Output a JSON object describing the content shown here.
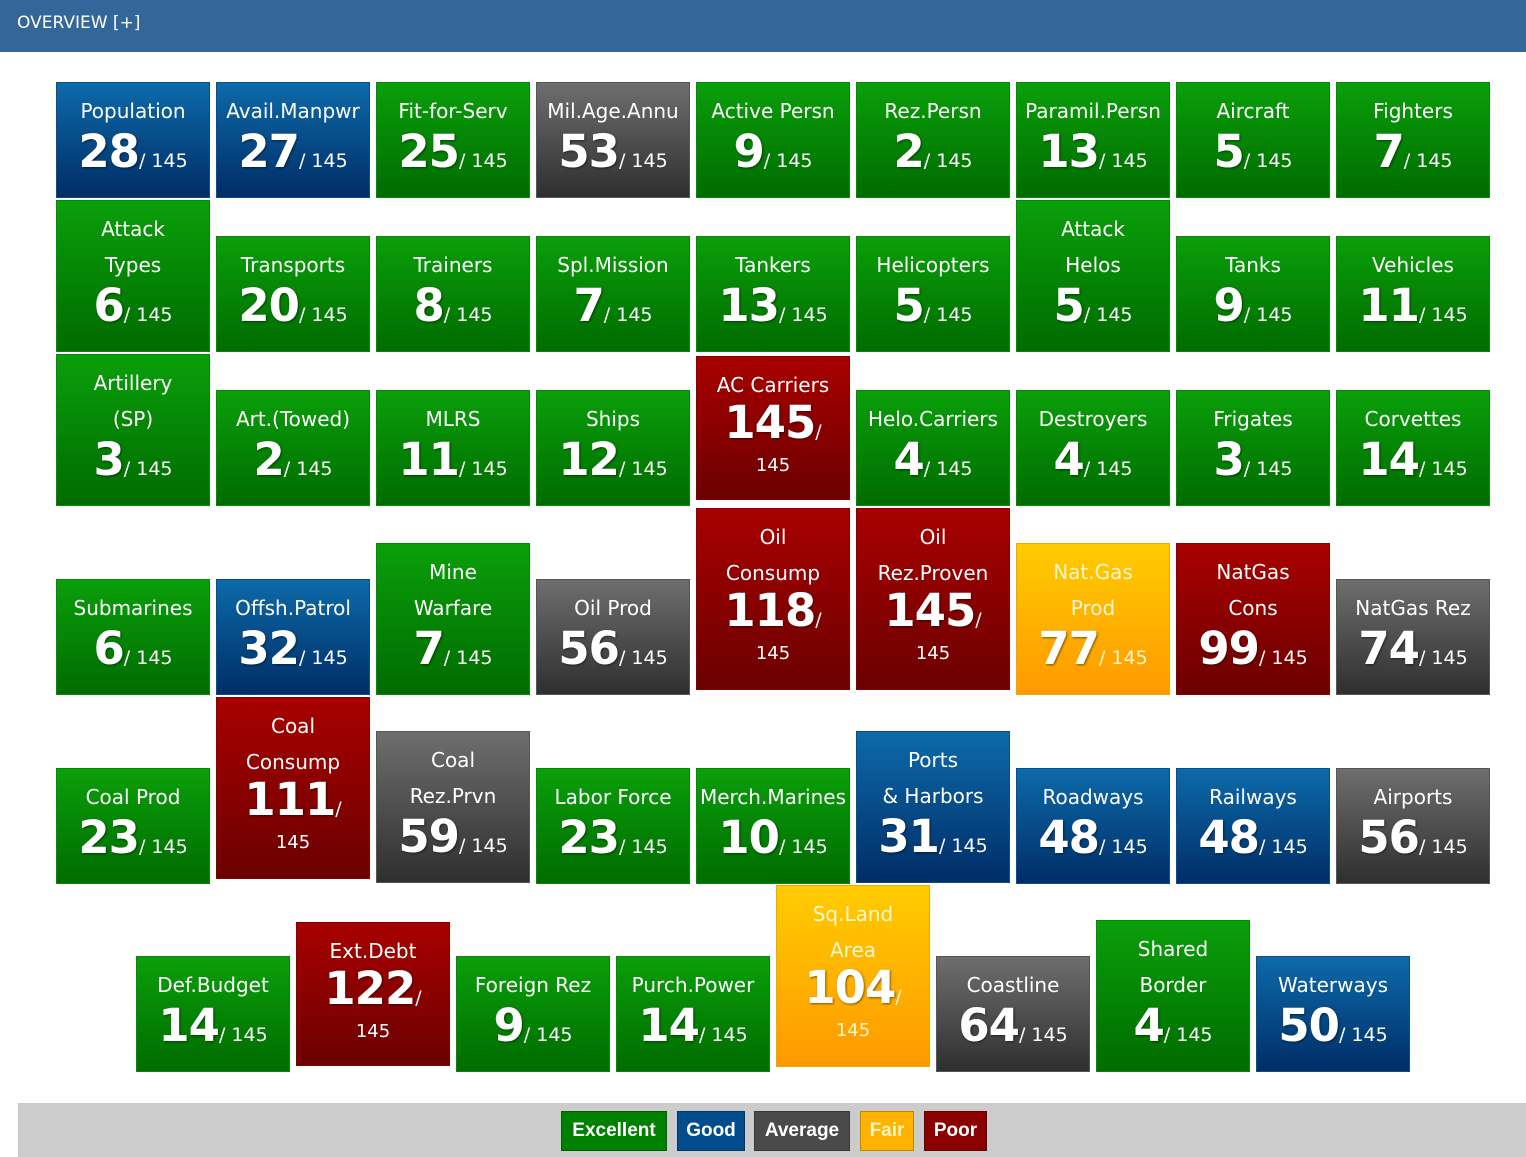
{
  "header": {
    "title": "OVERVIEW [+]"
  },
  "colors": {
    "excellent": "#008000",
    "good": "#004c8c",
    "average": "#4a4a4a",
    "fair": "#ffb300",
    "poor": "#8b0000"
  },
  "tiles": [
    {
      "label": "Population",
      "rank": "28",
      "total": "145",
      "rating": "good"
    },
    {
      "label": "Avail.Manpwr",
      "rank": "27",
      "total": "145",
      "rating": "good"
    },
    {
      "label": "Fit-for-Serv",
      "rank": "25",
      "total": "145",
      "rating": "excellent"
    },
    {
      "label": "Mil.Age.Annu",
      "rank": "53",
      "total": "145",
      "rating": "average"
    },
    {
      "label": "Active Persn",
      "rank": "9",
      "total": "145",
      "rating": "excellent"
    },
    {
      "label": "Rez.Persn",
      "rank": "2",
      "total": "145",
      "rating": "excellent"
    },
    {
      "label": "Paramil.Persn",
      "rank": "13",
      "total": "145",
      "rating": "excellent"
    },
    {
      "label": "Aircraft",
      "rank": "5",
      "total": "145",
      "rating": "excellent"
    },
    {
      "label": "Fighters",
      "rank": "7",
      "total": "145",
      "rating": "excellent"
    },
    {
      "label": "Attack Types",
      "rank": "6",
      "total": "145",
      "rating": "excellent"
    },
    {
      "label": "Transports",
      "rank": "20",
      "total": "145",
      "rating": "excellent"
    },
    {
      "label": "Trainers",
      "rank": "8",
      "total": "145",
      "rating": "excellent"
    },
    {
      "label": "Spl.Mission",
      "rank": "7",
      "total": "145",
      "rating": "excellent"
    },
    {
      "label": "Tankers",
      "rank": "13",
      "total": "145",
      "rating": "excellent"
    },
    {
      "label": "Helicopters",
      "rank": "5",
      "total": "145",
      "rating": "excellent"
    },
    {
      "label": "Attack Helos",
      "rank": "5",
      "total": "145",
      "rating": "excellent"
    },
    {
      "label": "Tanks",
      "rank": "9",
      "total": "145",
      "rating": "excellent"
    },
    {
      "label": "Vehicles",
      "rank": "11",
      "total": "145",
      "rating": "excellent"
    },
    {
      "label": "Artillery (SP)",
      "rank": "3",
      "total": "145",
      "rating": "excellent"
    },
    {
      "label": "Art.(Towed)",
      "rank": "2",
      "total": "145",
      "rating": "excellent"
    },
    {
      "label": "MLRS",
      "rank": "11",
      "total": "145",
      "rating": "excellent"
    },
    {
      "label": "Ships",
      "rank": "12",
      "total": "145",
      "rating": "excellent"
    },
    {
      "label": "AC Carriers",
      "rank": "145",
      "total": "145",
      "rating": "poor"
    },
    {
      "label": "Helo.Carriers",
      "rank": "4",
      "total": "145",
      "rating": "excellent"
    },
    {
      "label": "Destroyers",
      "rank": "4",
      "total": "145",
      "rating": "excellent"
    },
    {
      "label": "Frigates",
      "rank": "3",
      "total": "145",
      "rating": "excellent"
    },
    {
      "label": "Corvettes",
      "rank": "14",
      "total": "145",
      "rating": "excellent"
    },
    {
      "label": "Submarines",
      "rank": "6",
      "total": "145",
      "rating": "excellent"
    },
    {
      "label": "Offsh.Patrol",
      "rank": "32",
      "total": "145",
      "rating": "good"
    },
    {
      "label": "Mine Warfare",
      "rank": "7",
      "total": "145",
      "rating": "excellent"
    },
    {
      "label": "Oil Prod",
      "rank": "56",
      "total": "145",
      "rating": "average"
    },
    {
      "label": "Oil Consump",
      "rank": "118",
      "total": "145",
      "rating": "poor"
    },
    {
      "label": "Oil Rez.Proven",
      "rank": "145",
      "total": "145",
      "rating": "poor"
    },
    {
      "label": "Nat.Gas Prod",
      "rank": "77",
      "total": "145",
      "rating": "fair"
    },
    {
      "label": "NatGas Cons",
      "rank": "99",
      "total": "145",
      "rating": "poor"
    },
    {
      "label": "NatGas Rez",
      "rank": "74",
      "total": "145",
      "rating": "average"
    },
    {
      "label": "Coal Prod",
      "rank": "23",
      "total": "145",
      "rating": "excellent"
    },
    {
      "label": "Coal Consump",
      "rank": "111",
      "total": "145",
      "rating": "poor"
    },
    {
      "label": "Coal Rez.Prvn",
      "rank": "59",
      "total": "145",
      "rating": "average"
    },
    {
      "label": "Labor Force",
      "rank": "23",
      "total": "145",
      "rating": "excellent"
    },
    {
      "label": "Merch.Marines",
      "rank": "10",
      "total": "145",
      "rating": "excellent"
    },
    {
      "label": "Ports & Harbors",
      "rank": "31",
      "total": "145",
      "rating": "good"
    },
    {
      "label": "Roadways",
      "rank": "48",
      "total": "145",
      "rating": "good"
    },
    {
      "label": "Railways",
      "rank": "48",
      "total": "145",
      "rating": "good"
    },
    {
      "label": "Airports",
      "rank": "56",
      "total": "145",
      "rating": "average"
    },
    {
      "label": "Def.Budget",
      "rank": "14",
      "total": "145",
      "rating": "excellent"
    },
    {
      "label": "Ext.Debt",
      "rank": "122",
      "total": "145",
      "rating": "poor"
    },
    {
      "label": "Foreign Rez",
      "rank": "9",
      "total": "145",
      "rating": "excellent"
    },
    {
      "label": "Purch.Power",
      "rank": "14",
      "total": "145",
      "rating": "excellent"
    },
    {
      "label": "Sq.Land Area",
      "rank": "104",
      "total": "145",
      "rating": "fair"
    },
    {
      "label": "Coastline",
      "rank": "64",
      "total": "145",
      "rating": "average"
    },
    {
      "label": "Shared Border",
      "rank": "4",
      "total": "145",
      "rating": "excellent"
    },
    {
      "label": "Waterways",
      "rank": "50",
      "total": "145",
      "rating": "good"
    }
  ],
  "legend": [
    {
      "label": "Excellent",
      "rating": "excellent"
    },
    {
      "label": "Good",
      "rating": "good"
    },
    {
      "label": "Average",
      "rating": "average"
    },
    {
      "label": "Fair",
      "rating": "fair"
    },
    {
      "label": "Poor",
      "rating": "poor"
    }
  ]
}
